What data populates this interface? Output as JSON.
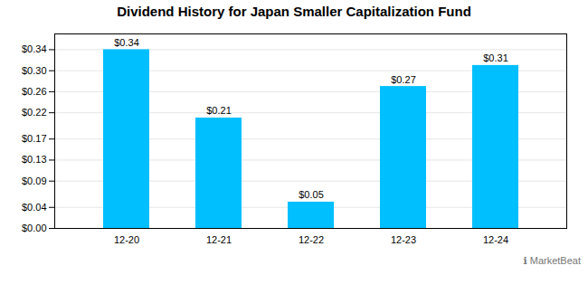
{
  "chart_data": {
    "type": "bar",
    "title": "Dividend History for Japan Smaller Capitalization Fund",
    "categories": [
      "12-20",
      "12-21",
      "12-22",
      "12-23",
      "12-24"
    ],
    "values": [
      0.34,
      0.21,
      0.05,
      0.27,
      0.31
    ],
    "value_labels": [
      "$0.34",
      "$0.21",
      "$0.05",
      "$0.27",
      "$0.31"
    ],
    "data_labels": true,
    "color": "#00bfff",
    "ylim": [
      0,
      0.37
    ],
    "yticks": [
      {
        "value": 0.0,
        "label": "$0.00"
      },
      {
        "value": 0.04,
        "label": "$0.04"
      },
      {
        "value": 0.09,
        "label": "$0.09"
      },
      {
        "value": 0.13,
        "label": "$0.13"
      },
      {
        "value": 0.17,
        "label": "$0.17"
      },
      {
        "value": 0.22,
        "label": "$0.22"
      },
      {
        "value": 0.26,
        "label": "$0.26"
      },
      {
        "value": 0.3,
        "label": "$0.30"
      },
      {
        "value": 0.34,
        "label": "$0.34"
      }
    ],
    "grid": true,
    "annotations": [
      "ℹ MarketBeat"
    ]
  }
}
